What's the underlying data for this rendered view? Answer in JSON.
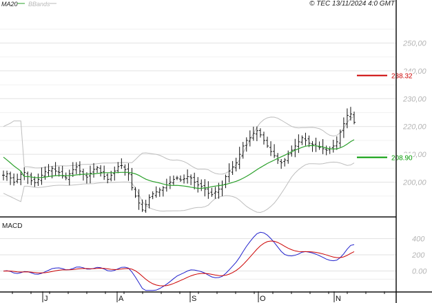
{
  "header": {
    "legend": [
      {
        "label": "MA20",
        "color": "#2aa02a"
      },
      {
        "label": "BBands",
        "color": "#b8b8b8"
      }
    ],
    "copyright": "© TEC 13/11/2024 4:0 GMT"
  },
  "macd_panel": {
    "title": "MACD"
  },
  "chart_data": [
    {
      "type": "ohlc",
      "panel": "price",
      "x": {
        "labels": [
          "J",
          "A",
          "S",
          "O",
          "N"
        ]
      },
      "y": {
        "min": 188,
        "max": 262,
        "ticks": [
          200,
          210,
          220,
          230,
          240,
          250
        ],
        "tick_labels": [
          "200,00",
          "210,00",
          "220,00",
          "230,00",
          "240,00",
          "250,00"
        ]
      },
      "grid": true,
      "series": [
        {
          "name": "MA20",
          "color": "#2aa02a"
        },
        {
          "name": "BBands",
          "color": "#b8b8b8"
        }
      ],
      "close": [
        202.5,
        203.0,
        201.5,
        200.0,
        201.0,
        202.8,
        203.5,
        202.0,
        200.5,
        199.8,
        201.0,
        202.5,
        203.8,
        204.2,
        205.0,
        204.0,
        203.5,
        202.2,
        201.5,
        203.0,
        204.5,
        205.5,
        204.0,
        202.8,
        201.8,
        203.2,
        204.6,
        205.2,
        203.5,
        202.0,
        201.0,
        202.5,
        204.0,
        205.6,
        206.0,
        204.5,
        203.0,
        198.0,
        195.0,
        192.5,
        190.0,
        192.0,
        194.5,
        195.8,
        196.5,
        197.2,
        198.0,
        199.0,
        200.0,
        201.0,
        201.5,
        200.8,
        201.2,
        202.0,
        201.5,
        200.0,
        199.0,
        198.5,
        197.5,
        196.0,
        195.5,
        196.5,
        197.5,
        199.0,
        202.0,
        204.0,
        205.5,
        207.0,
        210.0,
        213.0,
        215.0,
        216.0,
        217.5,
        218.5,
        217.0,
        215.0,
        213.0,
        211.0,
        209.5,
        208.0,
        207.0,
        208.0,
        210.0,
        211.5,
        213.0,
        214.5,
        216.0,
        215.0,
        214.0,
        213.5,
        213.0,
        212.5,
        212.0,
        211.5,
        212.0,
        213.0,
        214.5,
        218.0,
        221.0,
        224.0,
        224.5,
        221.5
      ],
      "ma20_end": 216.0,
      "markers": [
        {
          "label": "238.32",
          "value": 238.32,
          "color": "#cc0000"
        },
        {
          "label": "208.90",
          "value": 208.9,
          "color": "#009900"
        }
      ]
    },
    {
      "type": "line",
      "panel": "MACD",
      "y": {
        "min": -250,
        "max": 650,
        "ticks": [
          0,
          200,
          400
        ],
        "tick_labels": [
          "0.00",
          "200",
          "400"
        ]
      },
      "series": [
        {
          "name": "MACD",
          "color": "#2020cc"
        },
        {
          "name": "Signal",
          "color": "#cc0000"
        }
      ]
    }
  ]
}
